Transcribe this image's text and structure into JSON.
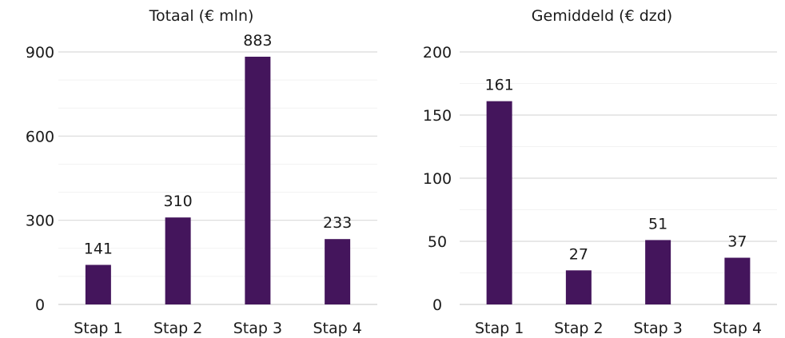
{
  "chart_data": [
    {
      "type": "bar",
      "title": "Totaal (€ mln)",
      "categories": [
        "Stap 1",
        "Stap 2",
        "Stap 3",
        "Stap 4"
      ],
      "values": [
        141,
        310,
        883,
        233
      ],
      "ylim": [
        0,
        900
      ],
      "yticks": [
        0,
        300,
        600,
        900
      ],
      "minor_grid_step": 100,
      "grid": true,
      "bar_color": "#44155c"
    },
    {
      "type": "bar",
      "title": "Gemiddeld (€ dzd)",
      "categories": [
        "Stap 1",
        "Stap 2",
        "Stap 3",
        "Stap 4"
      ],
      "values": [
        161,
        27,
        51,
        37
      ],
      "ylim": [
        0,
        200
      ],
      "yticks": [
        0,
        50,
        100,
        150,
        200
      ],
      "minor_grid_step": 25,
      "grid": true,
      "bar_color": "#44155c"
    }
  ]
}
